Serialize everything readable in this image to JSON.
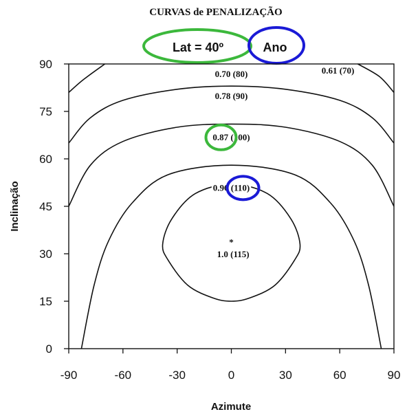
{
  "chart_data": {
    "type": "contour",
    "title": "CURVAS de PENALIZAÇÃO",
    "subtitle_lat": "Lat = 40º",
    "subtitle_period": "Ano",
    "xlabel": "Azimute",
    "ylabel": "Inclinação",
    "xlim": [
      -90,
      90
    ],
    "ylim": [
      0,
      90
    ],
    "xticks": [
      "-90",
      "-60",
      "-30",
      "0",
      "30",
      "60",
      "90"
    ],
    "yticks": [
      "0",
      "15",
      "30",
      "45",
      "60",
      "75",
      "90"
    ],
    "optimum_marker": {
      "x": 0,
      "y": 34,
      "symbol": "*"
    },
    "contours": [
      {
        "label": "1.0 (115)",
        "level": 1.0,
        "value": 115,
        "points": [
          [
            -24,
            20
          ],
          [
            -35,
            28
          ],
          [
            -38,
            33
          ],
          [
            -33,
            41
          ],
          [
            -20,
            49
          ],
          [
            0,
            52
          ],
          [
            20,
            49
          ],
          [
            33,
            41
          ],
          [
            38,
            33
          ],
          [
            35,
            28
          ],
          [
            24,
            20
          ],
          [
            10,
            16
          ],
          [
            0,
            15
          ],
          [
            -10,
            16
          ],
          [
            -24,
            20
          ]
        ]
      },
      {
        "label": "0.96 (110)",
        "level": 0.96,
        "value": 110,
        "points": [
          [
            -83,
            0
          ],
          [
            -76,
            20
          ],
          [
            -68,
            34
          ],
          [
            -55,
            46
          ],
          [
            -35,
            55
          ],
          [
            0,
            58
          ],
          [
            35,
            55
          ],
          [
            55,
            46
          ],
          [
            68,
            34
          ],
          [
            76,
            20
          ],
          [
            83,
            0
          ]
        ]
      },
      {
        "label": "0.87 (100)",
        "level": 0.87,
        "value": 100,
        "points": [
          [
            -90,
            45
          ],
          [
            -78,
            58
          ],
          [
            -60,
            65.5
          ],
          [
            -30,
            70
          ],
          [
            0,
            71
          ],
          [
            30,
            70
          ],
          [
            60,
            65.5
          ],
          [
            78,
            58
          ],
          [
            90,
            45
          ]
        ]
      },
      {
        "label": "0.78 (90)",
        "level": 0.78,
        "value": 90,
        "points": [
          [
            -90,
            65
          ],
          [
            -78,
            73
          ],
          [
            -60,
            78.5
          ],
          [
            -30,
            82
          ],
          [
            0,
            83
          ],
          [
            30,
            82
          ],
          [
            60,
            78.5
          ],
          [
            78,
            73
          ],
          [
            90,
            65
          ]
        ]
      },
      {
        "label": "0.70 (80)",
        "level": 0.7,
        "value": 80,
        "points": [
          [
            -90,
            81
          ],
          [
            -82,
            85
          ],
          [
            -70,
            90
          ]
        ]
      },
      {
        "label": "0.61 (70)",
        "level": 0.61,
        "value": 70,
        "points": [
          [
            70,
            90
          ],
          [
            82,
            86
          ],
          [
            90,
            81
          ]
        ]
      }
    ],
    "label_positions": [
      {
        "label": "1.0 (115)",
        "x": 1,
        "y": 30
      },
      {
        "label": "0.96 (110)",
        "x": 0,
        "y": 51
      },
      {
        "label": "0.87 (100)",
        "x": 0,
        "y": 67
      },
      {
        "label": "0.78 (90)",
        "x": 0,
        "y": 80
      },
      {
        "label": "0.70 (80)",
        "x": 0,
        "y": 87
      },
      {
        "label": "0.61 (70)",
        "x": 59,
        "y": 88
      }
    ],
    "highlights": [
      {
        "color": "#3cb83c",
        "target": "Lat = 40º"
      },
      {
        "color": "#1a1ad6",
        "target": "Ano"
      },
      {
        "color": "#3cb83c",
        "target": "0.87"
      },
      {
        "color": "#1a1ad6",
        "target": "(110)"
      }
    ],
    "colors": {
      "green": "#3cb83c",
      "blue": "#1a1ad6",
      "line": "#111111"
    }
  }
}
